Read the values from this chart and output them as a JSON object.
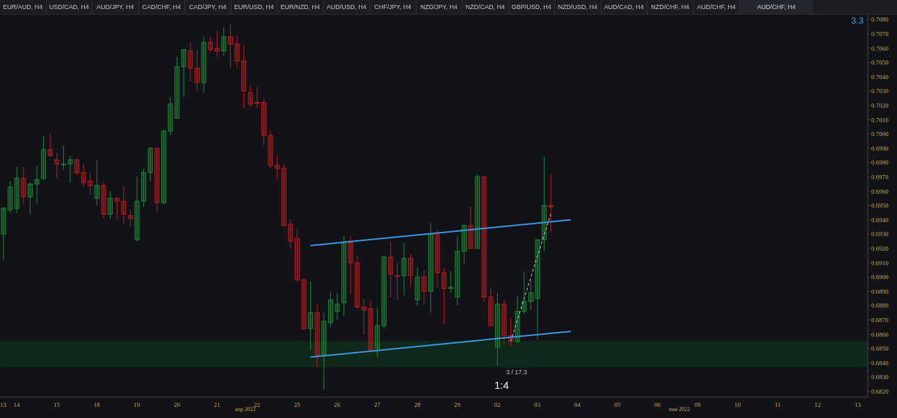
{
  "chart_data": {
    "type": "candlestick",
    "title": "AUD/CHF, H4",
    "categories": [
      "13",
      null,
      "14",
      null,
      null,
      null,
      null,
      null,
      "15",
      null,
      null,
      null,
      null,
      null,
      "18",
      null,
      null,
      null,
      null,
      null,
      "19",
      null,
      null,
      null,
      null,
      null,
      "20",
      null,
      null,
      null,
      null,
      null,
      "21",
      null,
      null,
      null,
      null,
      null,
      "22",
      null,
      null,
      null,
      null,
      null,
      "25",
      null,
      null,
      null,
      null,
      null,
      "26",
      null,
      null,
      null,
      null,
      null,
      "27",
      null,
      null,
      null,
      null,
      null,
      "28",
      null,
      null,
      null,
      null,
      null,
      "29",
      null,
      null,
      null,
      null,
      null,
      "02",
      null,
      null,
      null,
      null,
      null,
      "03",
      null,
      null,
      null,
      null,
      null,
      "04",
      null,
      null,
      null,
      null,
      null,
      "05",
      null,
      null,
      null,
      null,
      null,
      "06",
      null,
      null,
      null,
      null,
      null,
      "09",
      null,
      null,
      null,
      null,
      null,
      "10",
      null,
      null,
      null,
      null,
      null,
      "11",
      null,
      null,
      null,
      null,
      null,
      "12",
      null,
      null,
      null,
      null,
      null,
      "13",
      null
    ],
    "ohlc": [
      [
        0.693,
        0.6949,
        0.6912,
        0.6948
      ],
      [
        0.6947,
        0.6967,
        0.6945,
        0.6963
      ],
      [
        0.6948,
        0.6977,
        0.6945,
        0.6969
      ],
      [
        0.6969,
        0.6977,
        0.6951,
        0.6956
      ],
      [
        0.6956,
        0.6966,
        0.6944,
        0.6965
      ],
      [
        0.6965,
        0.6978,
        0.6951,
        0.6968
      ],
      [
        0.6969,
        0.6999,
        0.6968,
        0.6989
      ],
      [
        0.6989,
        0.7,
        0.6984,
        0.6985
      ],
      [
        0.6982,
        0.6987,
        0.6969,
        0.6979
      ],
      [
        0.6979,
        0.6992,
        0.6975,
        0.6979
      ],
      [
        0.6979,
        0.6985,
        0.6966,
        0.6982
      ],
      [
        0.6982,
        0.6983,
        0.6971,
        0.6973
      ],
      [
        0.6973,
        0.6979,
        0.6963,
        0.6966
      ],
      [
        0.6967,
        0.6973,
        0.6958,
        0.6964
      ],
      [
        0.6955,
        0.6982,
        0.695,
        0.6964
      ],
      [
        0.6964,
        0.6966,
        0.6941,
        0.6944
      ],
      [
        0.6944,
        0.696,
        0.6941,
        0.6955
      ],
      [
        0.6955,
        0.6956,
        0.694,
        0.6953
      ],
      [
        0.6953,
        0.6963,
        0.6937,
        0.6944
      ],
      [
        0.6943,
        0.6947,
        0.6935,
        0.6941
      ],
      [
        0.6926,
        0.697,
        0.6925,
        0.6953
      ],
      [
        0.6953,
        0.6976,
        0.6949,
        0.6973
      ],
      [
        0.6973,
        0.6991,
        0.6967,
        0.699
      ],
      [
        0.699,
        0.699,
        0.6945,
        0.6952
      ],
      [
        0.6952,
        0.7003,
        0.6951,
        0.7002
      ],
      [
        0.7002,
        0.7026,
        0.6999,
        0.7021
      ],
      [
        0.7011,
        0.7054,
        0.7011,
        0.7047
      ],
      [
        0.7047,
        0.7059,
        0.7026,
        0.7059
      ],
      [
        0.7058,
        0.7064,
        0.7037,
        0.7046
      ],
      [
        0.7046,
        0.7059,
        0.703,
        0.7036
      ],
      [
        0.7036,
        0.7068,
        0.7029,
        0.7064
      ],
      [
        0.7064,
        0.7068,
        0.7057,
        0.7059
      ],
      [
        0.706,
        0.7072,
        0.7054,
        0.7058
      ],
      [
        0.7058,
        0.7075,
        0.7055,
        0.7068
      ],
      [
        0.7068,
        0.7077,
        0.7046,
        0.7063
      ],
      [
        0.7063,
        0.7069,
        0.7046,
        0.7051
      ],
      [
        0.7051,
        0.7062,
        0.7018,
        0.703
      ],
      [
        0.7029,
        0.7034,
        0.7019,
        0.7021
      ],
      [
        0.7022,
        0.7033,
        0.7018,
        0.7022
      ],
      [
        0.7022,
        0.7025,
        0.6992,
        0.6999
      ],
      [
        0.6999,
        0.7002,
        0.6976,
        0.6978
      ],
      [
        0.6978,
        0.6985,
        0.6968,
        0.6976
      ],
      [
        0.6976,
        0.6979,
        0.6936,
        0.6936
      ],
      [
        0.6937,
        0.694,
        0.692,
        0.6925
      ],
      [
        0.6927,
        0.6934,
        0.6897,
        0.6898
      ],
      [
        0.6898,
        0.6899,
        0.6863,
        0.6864
      ],
      [
        0.6864,
        0.6897,
        0.6849,
        0.6875
      ],
      [
        0.6875,
        0.6881,
        0.6837,
        0.6845
      ],
      [
        0.6846,
        0.6875,
        0.6821,
        0.6869
      ],
      [
        0.6868,
        0.689,
        0.6865,
        0.6884
      ],
      [
        0.6876,
        0.6889,
        0.687,
        0.6881
      ],
      [
        0.6882,
        0.6929,
        0.6873,
        0.6924
      ],
      [
        0.6924,
        0.6929,
        0.6888,
        0.691
      ],
      [
        0.691,
        0.6915,
        0.6878,
        0.6879
      ],
      [
        0.6879,
        0.6885,
        0.686,
        0.6877
      ],
      [
        0.6878,
        0.6884,
        0.6849,
        0.6849
      ],
      [
        0.685,
        0.6879,
        0.6844,
        0.6866
      ],
      [
        0.6866,
        0.6915,
        0.6864,
        0.6914
      ],
      [
        0.6914,
        0.6925,
        0.6886,
        0.6902
      ],
      [
        0.6901,
        0.691,
        0.6884,
        0.6901
      ],
      [
        0.6901,
        0.6924,
        0.6887,
        0.6913
      ],
      [
        0.6913,
        0.6916,
        0.6893,
        0.6901
      ],
      [
        0.6884,
        0.6907,
        0.688,
        0.69
      ],
      [
        0.69,
        0.6905,
        0.6881,
        0.689
      ],
      [
        0.689,
        0.6938,
        0.6875,
        0.693
      ],
      [
        0.693,
        0.6933,
        0.6893,
        0.6903
      ],
      [
        0.6903,
        0.6906,
        0.6867,
        0.6892
      ],
      [
        0.6892,
        0.6904,
        0.6889,
        0.6893
      ],
      [
        0.6886,
        0.6929,
        0.688,
        0.6918
      ],
      [
        0.6918,
        0.6937,
        0.6909,
        0.6936
      ],
      [
        0.6936,
        0.6949,
        0.692,
        0.692
      ],
      [
        0.692,
        0.6972,
        0.692,
        0.697
      ],
      [
        0.697,
        0.6971,
        0.6883,
        0.6886
      ],
      [
        0.6886,
        0.6892,
        0.6866,
        0.6866
      ],
      [
        0.6851,
        0.6889,
        0.6838,
        0.6881
      ],
      [
        0.6881,
        0.6884,
        0.6853,
        0.6859
      ],
      [
        0.6859,
        0.6871,
        0.6852,
        0.6855
      ],
      [
        0.6855,
        0.6887,
        0.6854,
        0.6876
      ],
      [
        0.6876,
        0.6904,
        0.6874,
        0.6883
      ],
      [
        0.6883,
        0.6898,
        0.6877,
        0.6889
      ],
      [
        0.6885,
        0.6926,
        0.6856,
        0.6926
      ],
      [
        0.6926,
        0.6984,
        0.6918,
        0.695
      ],
      [
        0.695,
        0.6972,
        0.6931,
        0.6949
      ],
      null,
      null,
      null,
      null,
      null,
      null,
      null,
      null,
      null,
      null,
      null,
      null,
      null,
      null,
      null,
      null,
      null,
      null,
      null,
      null,
      null,
      null,
      null,
      null,
      null,
      null,
      null,
      null,
      null,
      null,
      null,
      null,
      null,
      null,
      null,
      null,
      null,
      null,
      null,
      null,
      null,
      null,
      null,
      null,
      null,
      null,
      null
    ],
    "colors": [
      "#1c8a35",
      "#1c8a35",
      "#1c8a35",
      "#c01b1d",
      "#1c8a35",
      "#1c8a35",
      "#1c8a35",
      "#c01b1d",
      "#c01b1d",
      "#1c8a35",
      "#1c8a35",
      "#c01b1d",
      "#c01b1d",
      "#c01b1d",
      "#1c8a35",
      "#c01b1d",
      "#1c8a35",
      "#c01b1d",
      "#c01b1d",
      "#c01b1d",
      "#1c8a35",
      "#1c8a35",
      "#1c8a35",
      "#c01b1d",
      "#1c8a35",
      "#1c8a35",
      "#1c8a35",
      "#1c8a35",
      "#c01b1d",
      "#c01b1d",
      "#1c8a35",
      "#c01b1d",
      "#c01b1d",
      "#1c8a35",
      "#c01b1d",
      "#c01b1d",
      "#c01b1d",
      "#c01b1d",
      "#c01b1d",
      "#c01b1d",
      "#c01b1d",
      "#c01b1d",
      "#c01b1d",
      "#c01b1d",
      "#c01b1d",
      "#c01b1d",
      "#1c8a35",
      "#c01b1d",
      "#1c8a35",
      "#1c8a35",
      "#1c8a35",
      "#1c8a35",
      "#c01b1d",
      "#c01b1d",
      "#c01b1d",
      "#c01b1d",
      "#1c8a35",
      "#1c8a35",
      "#c01b1d",
      "#c01b1d",
      "#1c8a35",
      "#c01b1d",
      "#1c8a35",
      "#c01b1d",
      "#1c8a35",
      "#c01b1d",
      "#c01b1d",
      "#1c8a35",
      "#1c8a35",
      "#1c8a35",
      "#c01b1d",
      "#1c8a35",
      "#c01b1d",
      "#c01b1d",
      "#1c8a35",
      "#c01b1d",
      "#c01b1d",
      "#1c8a35",
      "#1c8a35",
      "#1c8a35",
      "#1c8a35",
      "#1c8a35",
      "#c01b1d",
      null,
      null,
      null,
      null,
      null,
      null,
      null,
      null,
      null,
      null,
      null,
      null,
      null,
      null,
      null,
      null,
      null,
      null,
      null,
      null,
      null,
      null,
      null,
      null,
      null,
      null,
      null,
      null,
      null,
      null,
      null,
      null,
      null,
      null,
      null,
      null,
      null,
      null,
      null,
      null,
      null,
      null,
      null,
      null,
      null,
      null,
      null
    ],
    "series": [
      {
        "type": "line",
        "color": "#3a9be8",
        "values": [
          null,
          null,
          null,
          null,
          null,
          null,
          null,
          null,
          null,
          null,
          null,
          null,
          null,
          null,
          null,
          null,
          null,
          null,
          null,
          null,
          null,
          null,
          null,
          null,
          null,
          null,
          null,
          null,
          null,
          null,
          null,
          null,
          null,
          null,
          null,
          null,
          null,
          null,
          null,
          null,
          null,
          null,
          null,
          null,
          null,
          null,
          0.6922,
          null,
          null,
          null,
          null,
          null,
          null,
          null,
          null,
          null,
          null,
          null,
          null,
          null,
          null,
          null,
          null,
          null,
          null,
          null,
          null,
          null,
          null,
          null,
          null,
          null,
          null,
          null,
          null,
          null,
          null,
          null,
          null,
          null,
          null,
          null,
          null,
          null,
          null,
          0.694,
          null,
          null,
          null,
          null,
          null,
          null,
          null,
          null,
          null,
          null,
          null,
          null,
          null,
          null,
          null,
          null,
          null,
          null,
          null,
          null,
          null,
          null,
          null,
          null,
          null,
          null,
          null,
          null,
          null,
          null,
          null,
          null,
          null,
          null,
          null,
          null,
          null,
          null,
          null,
          null,
          null,
          null,
          null,
          null
        ]
      },
      {
        "type": "line",
        "color": "#3a9be8",
        "values": [
          null,
          null,
          null,
          null,
          null,
          null,
          null,
          null,
          null,
          null,
          null,
          null,
          null,
          null,
          null,
          null,
          null,
          null,
          null,
          null,
          null,
          null,
          null,
          null,
          null,
          null,
          null,
          null,
          null,
          null,
          null,
          null,
          null,
          null,
          null,
          null,
          null,
          null,
          null,
          null,
          null,
          null,
          null,
          null,
          null,
          null,
          0.6844,
          null,
          null,
          null,
          null,
          null,
          null,
          null,
          null,
          null,
          null,
          null,
          null,
          null,
          null,
          null,
          null,
          null,
          null,
          null,
          null,
          null,
          null,
          null,
          null,
          null,
          null,
          null,
          null,
          null,
          null,
          null,
          null,
          null,
          null,
          null,
          null,
          null,
          null,
          0.6862,
          null,
          null,
          null,
          null,
          null,
          null,
          null,
          null,
          null,
          null,
          null,
          null,
          null,
          null,
          null,
          null,
          null,
          null,
          null,
          null,
          null,
          null,
          null,
          null,
          null,
          null,
          null,
          null,
          null,
          null,
          null,
          null,
          null,
          null,
          null,
          null,
          null,
          null,
          null,
          null,
          null,
          null,
          null,
          null
        ]
      },
      {
        "type": "line",
        "color": "#d0d0d0",
        "line_style": "dashed",
        "values": [
          null,
          null,
          null,
          null,
          null,
          null,
          null,
          null,
          null,
          null,
          null,
          null,
          null,
          null,
          null,
          null,
          null,
          null,
          null,
          null,
          null,
          null,
          null,
          null,
          null,
          null,
          null,
          null,
          null,
          null,
          null,
          null,
          null,
          null,
          null,
          null,
          null,
          null,
          null,
          null,
          null,
          null,
          null,
          null,
          null,
          null,
          null,
          null,
          null,
          null,
          null,
          null,
          null,
          null,
          null,
          null,
          null,
          null,
          null,
          null,
          null,
          null,
          null,
          null,
          null,
          null,
          null,
          null,
          null,
          null,
          null,
          null,
          null,
          null,
          null,
          null,
          0.6855,
          null,
          null,
          null,
          null,
          null,
          0.6944,
          null,
          null,
          null,
          null,
          null,
          null,
          null,
          null,
          null,
          null,
          null,
          null,
          null,
          null,
          null,
          null,
          null,
          null,
          null,
          null,
          null,
          null,
          null,
          null,
          null,
          null,
          null,
          null,
          null,
          null,
          null,
          null,
          null,
          null,
          null,
          null,
          null,
          null,
          null,
          null,
          null,
          null,
          null,
          null,
          null,
          null,
          null
        ]
      }
    ],
    "bands": [
      {
        "axis": "y",
        "from": 0.6837,
        "to": 0.6855,
        "color": "#10281a"
      }
    ],
    "ylim": [
      0.6816,
      0.7083
    ],
    "yticks": [
      {
        "value": 0.682,
        "label": "0.6820"
      },
      {
        "value": 0.683,
        "label": "0.6830"
      },
      {
        "value": 0.684,
        "label": "0.6840"
      },
      {
        "value": 0.685,
        "label": "0.6850"
      },
      {
        "value": 0.686,
        "label": "0.6860"
      },
      {
        "value": 0.687,
        "label": "0.6870"
      },
      {
        "value": 0.688,
        "label": "0.6880"
      },
      {
        "value": 0.689,
        "label": "0.6890"
      },
      {
        "value": 0.69,
        "label": "0.6900"
      },
      {
        "value": 0.691,
        "label": "0.6910"
      },
      {
        "value": 0.692,
        "label": "0.6920"
      },
      {
        "value": 0.693,
        "label": "0.6930"
      },
      {
        "value": 0.694,
        "label": "0.6940"
      },
      {
        "value": 0.695,
        "label": "0.6950"
      },
      {
        "value": 0.696,
        "label": "0.6960"
      },
      {
        "value": 0.697,
        "label": "0.6970"
      },
      {
        "value": 0.698,
        "label": "0.6980"
      },
      {
        "value": 0.699,
        "label": "0.6990"
      },
      {
        "value": 0.7,
        "label": "0.7000"
      },
      {
        "value": 0.701,
        "label": "0.7010"
      },
      {
        "value": 0.702,
        "label": "0.7020"
      },
      {
        "value": 0.703,
        "label": "0.7030"
      },
      {
        "value": 0.704,
        "label": "0.7040"
      },
      {
        "value": 0.705,
        "label": "0.7050"
      },
      {
        "value": 0.706,
        "label": "0.7060"
      },
      {
        "value": 0.707,
        "label": "0.7070"
      },
      {
        "value": 0.708,
        "label": "0.7080"
      }
    ],
    "annotations": [
      "EUR/AUD, H4",
      "USD/CAD, H4",
      "AUD/JPY, H4",
      "CAD/CHF, H4",
      "CAD/JPY, H4",
      "EUR/USD, H4",
      "EUR/NZD, H4",
      "AUD/USD, H4",
      "CHF/JPY, H4",
      "NZD/JPY, H4",
      "NZD/CAD, H4",
      "GBP/USD, H4",
      "NZD/USD, H4",
      "AUD/CAD, H4",
      "NZD/CHF, H4",
      "AUD/CHF, H4",
      "3.3",
      "3 / 17.3",
      "1:4",
      "апр 2022",
      "мая 2022"
    ],
    "tick_labels": true
  }
}
